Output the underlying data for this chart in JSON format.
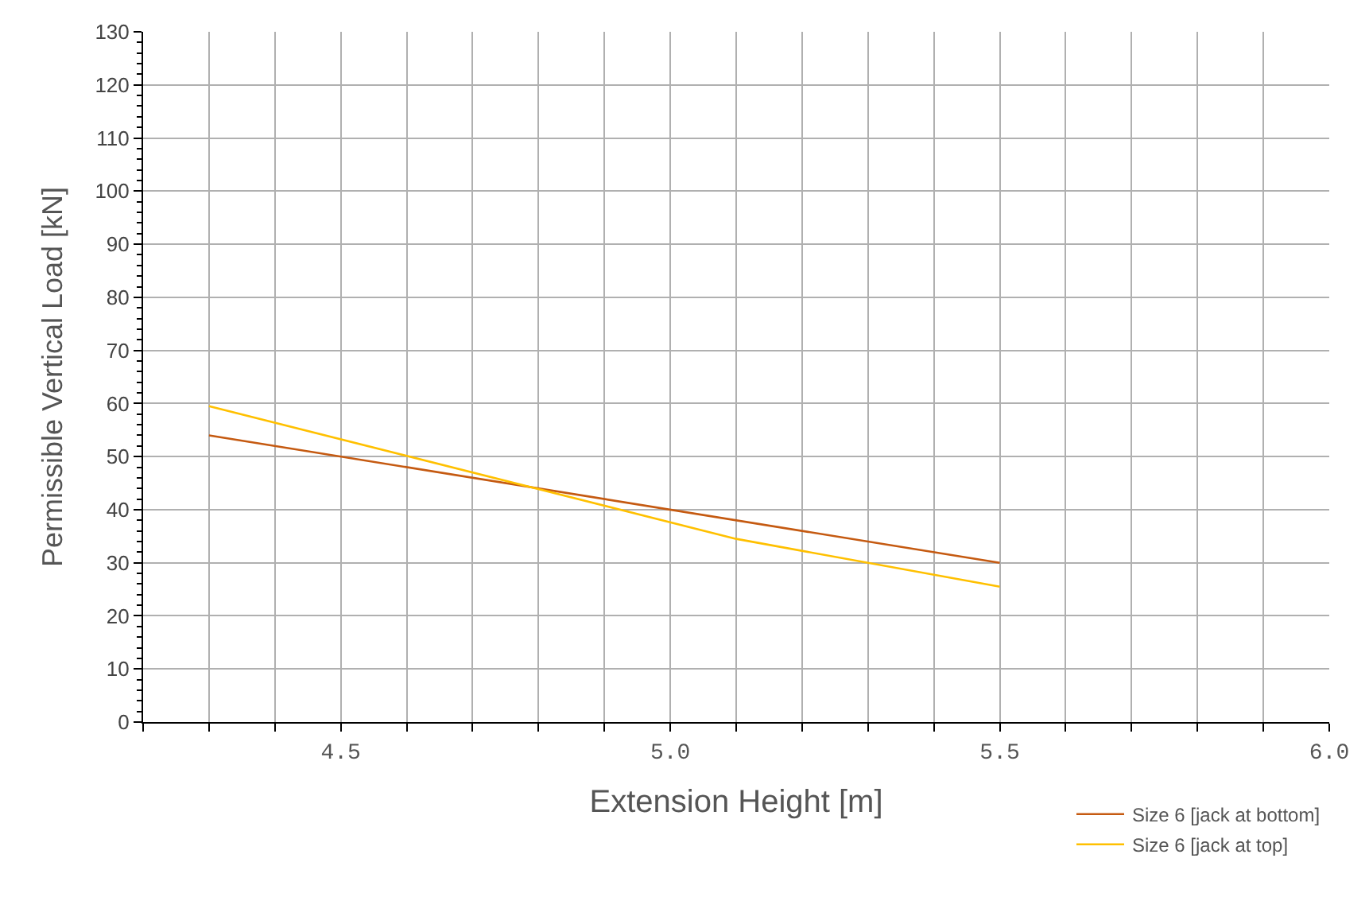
{
  "chart_data": {
    "type": "line",
    "xlabel": "Extension Height [m]",
    "ylabel": "Permissible Vertical Load [kN]",
    "series": [
      {
        "name": "Size 6 [jack at bottom]",
        "color": "#c55a11",
        "x": [
          4.3,
          5.5
        ],
        "values": [
          54,
          30
        ]
      },
      {
        "name": "Size 6 [jack at top]",
        "color": "#ffc000",
        "x": [
          4.3,
          5.1,
          5.5
        ],
        "values": [
          59.5,
          34.5,
          25.5
        ]
      }
    ],
    "xlim": [
      4.2,
      6.0
    ],
    "xticks": [
      {
        "value": 4.2,
        "label": null
      },
      {
        "value": 4.3,
        "label": null
      },
      {
        "value": 4.4,
        "label": null
      },
      {
        "value": 4.5,
        "label": "4.5"
      },
      {
        "value": 4.6,
        "label": null
      },
      {
        "value": 4.7,
        "label": null
      },
      {
        "value": 4.8,
        "label": null
      },
      {
        "value": 4.9,
        "label": null
      },
      {
        "value": 5.0,
        "label": "5.0"
      },
      {
        "value": 5.1,
        "label": null
      },
      {
        "value": 5.2,
        "label": null
      },
      {
        "value": 5.3,
        "label": null
      },
      {
        "value": 5.4,
        "label": null
      },
      {
        "value": 5.5,
        "label": "5.5"
      },
      {
        "value": 5.6,
        "label": null
      },
      {
        "value": 5.7,
        "label": null
      },
      {
        "value": 5.8,
        "label": null
      },
      {
        "value": 5.9,
        "label": null
      },
      {
        "value": 6.0,
        "label": "6.0"
      }
    ],
    "ylim": [
      0,
      130
    ],
    "yticks": [
      0,
      10,
      20,
      30,
      40,
      50,
      60,
      70,
      80,
      90,
      100,
      110,
      120,
      130
    ],
    "grid": true,
    "legend": "bottom right",
    "marker": "none",
    "line_style": "solid"
  }
}
